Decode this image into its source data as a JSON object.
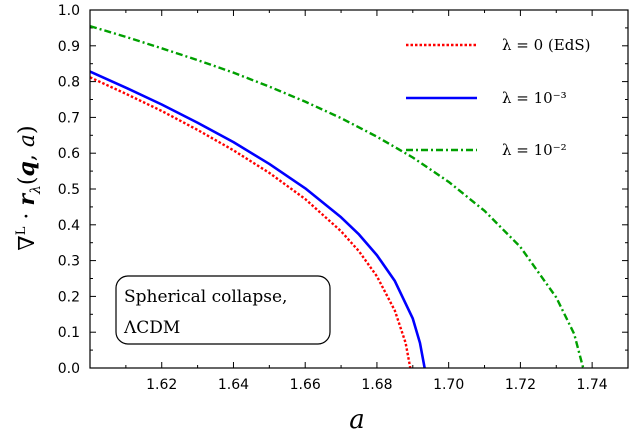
{
  "chart_data": {
    "type": "line",
    "xlabel": "a",
    "ylabel": "∇ᴸ · r_λ(q, a)",
    "xlim": [
      1.6,
      1.75
    ],
    "ylim": [
      0.0,
      1.0
    ],
    "x_ticks": [
      1.62,
      1.64,
      1.66,
      1.68,
      1.7,
      1.72,
      1.74
    ],
    "y_ticks": [
      0.0,
      0.1,
      0.2,
      0.3,
      0.4,
      0.5,
      0.6,
      0.7,
      0.8,
      0.9,
      1.0
    ],
    "legend_position": "top-right",
    "annotation": [
      "Spherical collapse,",
      "ΛCDM"
    ],
    "series": [
      {
        "name": "λ = 0 (EdS)",
        "color": "#ff0000",
        "style": "dotted",
        "x": [
          1.6,
          1.61,
          1.62,
          1.63,
          1.64,
          1.65,
          1.66,
          1.67,
          1.675,
          1.68,
          1.685,
          1.688,
          1.6893
        ],
        "y": [
          0.812,
          0.766,
          0.718,
          0.665,
          0.608,
          0.545,
          0.472,
          0.382,
          0.326,
          0.256,
          0.16,
          0.07,
          0.0
        ]
      },
      {
        "name": "λ = 10⁻³",
        "color": "#0000ff",
        "style": "solid",
        "x": [
          1.6,
          1.61,
          1.62,
          1.63,
          1.64,
          1.65,
          1.66,
          1.67,
          1.675,
          1.68,
          1.685,
          1.69,
          1.692,
          1.6933
        ],
        "y": [
          0.828,
          0.783,
          0.736,
          0.685,
          0.631,
          0.57,
          0.502,
          0.421,
          0.373,
          0.315,
          0.243,
          0.138,
          0.07,
          0.0
        ]
      },
      {
        "name": "λ = 10⁻²",
        "color": "#00a000",
        "style": "dashdot",
        "x": [
          1.6,
          1.61,
          1.62,
          1.63,
          1.64,
          1.65,
          1.66,
          1.67,
          1.68,
          1.69,
          1.7,
          1.71,
          1.72,
          1.73,
          1.735,
          1.7375
        ],
        "y": [
          0.955,
          0.925,
          0.893,
          0.86,
          0.825,
          0.786,
          0.744,
          0.698,
          0.646,
          0.588,
          0.52,
          0.439,
          0.338,
          0.197,
          0.095,
          0.0
        ]
      }
    ]
  }
}
